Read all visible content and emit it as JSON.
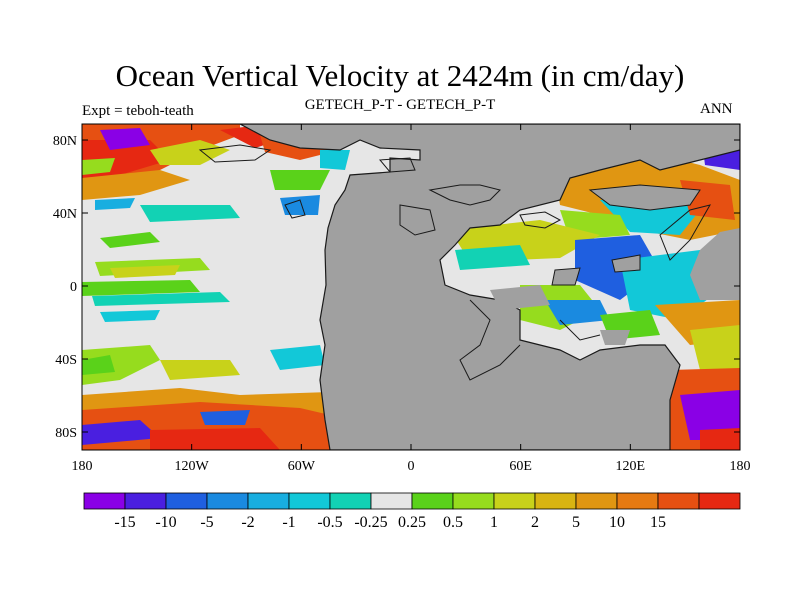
{
  "title": "Ocean Vertical Velocity at 2424m (in cm/day)",
  "subtitle_left": "Expt = teboh-teath",
  "subtitle_center": "GETECH_P-T - GETECH_P-T",
  "subtitle_right": "ANN",
  "lat_labels": [
    "80N",
    "40N",
    "0",
    "40S",
    "80S"
  ],
  "lon_labels": [
    "180",
    "120W",
    "60W",
    "0",
    "60E",
    "120E",
    "180"
  ],
  "colorbar": {
    "colors": [
      "#8a00e6",
      "#4a1fe0",
      "#1f5fe0",
      "#1a8ae0",
      "#18aee0",
      "#12c8d8",
      "#12d2b4",
      "#e6e6e6",
      "#5ad21a",
      "#96dc1e",
      "#c8d21a",
      "#d8b412",
      "#e09612",
      "#e67a12",
      "#e65012",
      "#e62812"
    ],
    "labels": [
      "-15",
      "-10",
      "-5",
      "-2",
      "-1",
      "-0.5",
      "-0.25",
      "0.25",
      "0.5",
      "1",
      "2",
      "5",
      "10",
      "15"
    ]
  },
  "colors": {
    "land": "#a0a0a0",
    "neutral": "#e6e6e6",
    "coast": "#1a1a1a"
  }
}
